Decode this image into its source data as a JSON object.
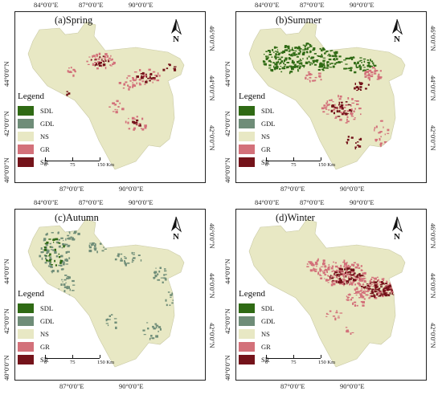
{
  "colors": {
    "SDL": "#2f6a14",
    "GDL": "#6f8d78",
    "NS": "#e8e8c4",
    "GR": "#d3717a",
    "SR": "#74131a"
  },
  "panels": [
    {
      "title": "(a)Spring",
      "top_ticks": [
        "84°0'0\"E",
        "87°0'0\"E",
        "90°0'0\"E"
      ],
      "bottom_ticks": [
        "87°0'0\"E",
        "90°0'0\"E"
      ],
      "left_ticks": [
        "44°0'0\"N",
        "42°0'0\"N",
        "40°0'0\"N"
      ],
      "right_ticks": [
        "46°0'0\"N",
        "44°0'0\"N",
        "42°0'0\"N"
      ]
    },
    {
      "title": "(b)Summer",
      "top_ticks": [
        "84°0'0\"E",
        "87°0'0\"E",
        "90°0'0\"E"
      ],
      "bottom_ticks": [
        "87°0'0\"E",
        "90°0'0\"E"
      ],
      "left_ticks": [
        "44°0'0\"N",
        "42°0'0\"N",
        "40°0'0\"N"
      ],
      "right_ticks": [
        "46°0'0\"N",
        "44°0'0\"N",
        "42°0'0\"N"
      ]
    },
    {
      "title": "(c)Autumn",
      "top_ticks": [
        "84°0'0\"E",
        "87°0'0\"E",
        "90°0'0\"E"
      ],
      "bottom_ticks": [
        "87°0'0\"E",
        "90°0'0\"E"
      ],
      "left_ticks": [
        "44°0'0\"N",
        "42°0'0\"N",
        "40°0'0\"N"
      ],
      "right_ticks": [
        "46°0'0\"N",
        "44°0'0\"N",
        "42°0'0\"N"
      ]
    },
    {
      "title": "(d)Winter",
      "top_ticks": [
        "84°0'0\"E",
        "87°0'0\"E",
        "90°0'0\"E"
      ],
      "bottom_ticks": [
        "87°0'0\"E",
        "90°0'0\"E"
      ],
      "left_ticks": [
        "44°0'0\"N",
        "42°0'0\"N",
        "40°0'0\"N"
      ],
      "right_ticks": [
        "46°0'0\"N",
        "44°0'0\"N",
        "42°0'0\"N"
      ]
    }
  ],
  "legend": {
    "title": "Legend",
    "items": [
      {
        "key": "SDL",
        "label": "SDL"
      },
      {
        "key": "GDL",
        "label": "GDL"
      },
      {
        "key": "NS",
        "label": "NS"
      },
      {
        "key": "GR",
        "label": "GR"
      },
      {
        "key": "SR",
        "label": "SR"
      }
    ]
  },
  "scalebar": {
    "labels": [
      "0",
      "75",
      "150 Km"
    ]
  },
  "north_arrow": {
    "label": "N"
  }
}
